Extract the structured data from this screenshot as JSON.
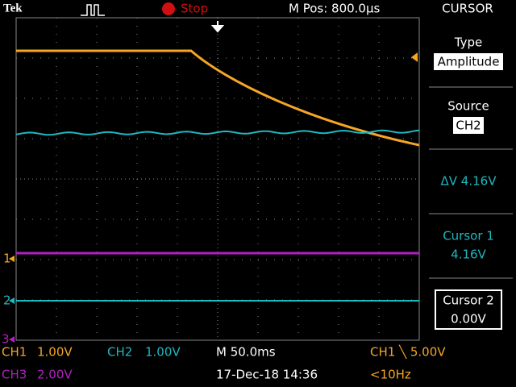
{
  "status_bar": {
    "brand": "Tek",
    "run_state": "Stop",
    "position": "M Pos: 800.0µs",
    "menu": "CURSOR"
  },
  "side_menu": {
    "type_label": "Type",
    "type_value": "Amplitude",
    "source_label": "Source",
    "source_value": "CH2",
    "delta": "ΔV 4.16V",
    "cursor1_label": "Cursor 1",
    "cursor1_value": "4.16V",
    "cursor2_label": "Cursor 2",
    "cursor2_value": "0.00V"
  },
  "markers": [
    "1",
    "2",
    "3"
  ],
  "readout": {
    "ch1": "CH1",
    "ch1_scale": "1.00V",
    "ch2": "CH2",
    "ch2_scale": "1.00V",
    "timebase": "M 50.0ms",
    "trigger": "CH1 ╲ 5.00V",
    "ch3": "CH3",
    "ch3_scale": "2.00V",
    "datetime": "17-Dec-18 14:36",
    "frequency": "<10Hz"
  }
}
